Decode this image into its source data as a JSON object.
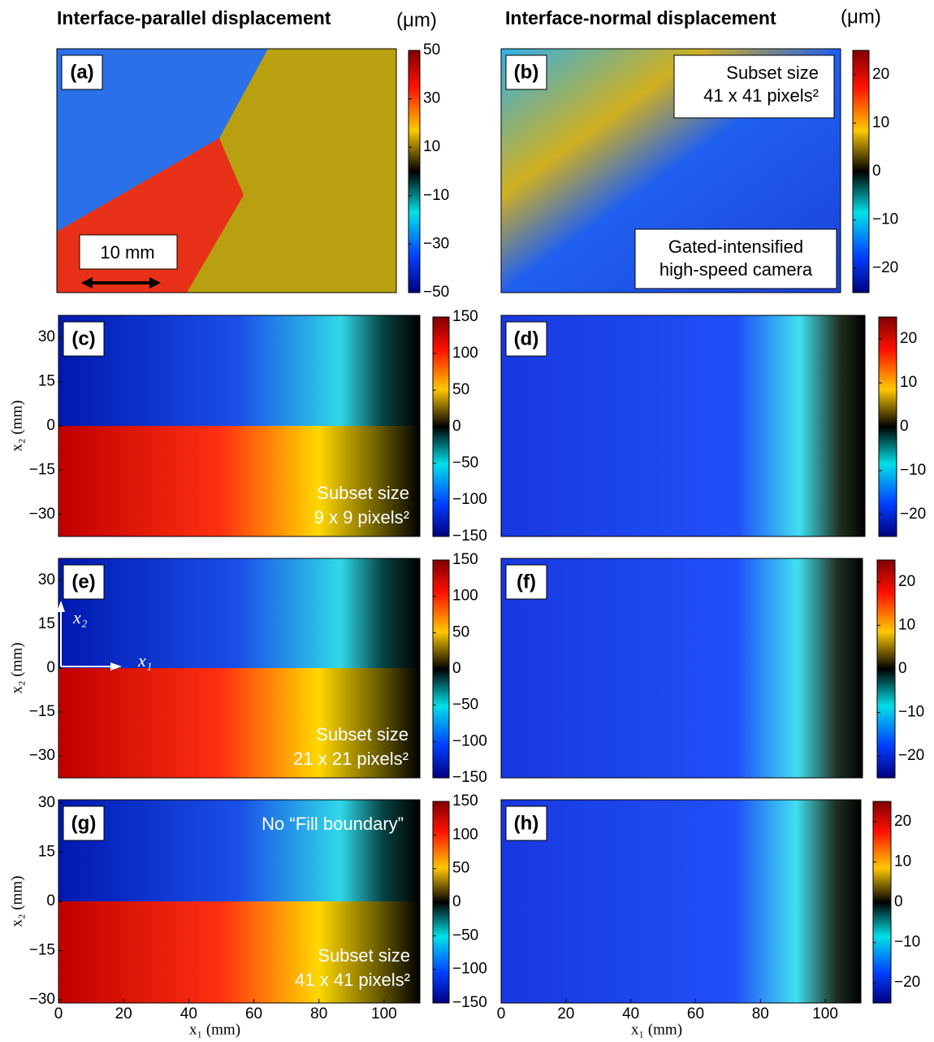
{
  "columns": [
    {
      "title": "Interface-parallel displacement",
      "unit": "(μm)"
    },
    {
      "title": "Interface-normal displacement",
      "unit": "(μm)"
    }
  ],
  "chart_data": [
    {
      "type": "heatmap",
      "label": "(a)",
      "clim": [
        -50,
        50
      ],
      "cticks": [
        {
          "value": -50,
          "label": "−50"
        },
        {
          "value": -30,
          "label": "−30"
        },
        {
          "value": -10,
          "label": "−10"
        },
        10,
        30,
        50
      ],
      "annotations": [
        [
          "10 mm"
        ]
      ]
    },
    {
      "type": "heatmap",
      "label": "(b)",
      "clim": [
        -25,
        25
      ],
      "cticks": [
        {
          "value": -20,
          "label": "−20"
        },
        {
          "value": -10,
          "label": "−10"
        },
        0,
        10,
        20
      ],
      "annotations": [
        [
          "Subset size",
          "41 x 41 pixels²"
        ],
        [
          "Gated-intensified",
          "high-speed camera"
        ]
      ]
    },
    {
      "type": "heatmap",
      "label": "(c)",
      "clim": [
        -150,
        150
      ],
      "cticks": [
        {
          "value": -150,
          "label": "−150"
        },
        {
          "value": -100,
          "label": "−100"
        },
        {
          "value": -50,
          "label": "−50"
        },
        0,
        50,
        100,
        150
      ],
      "ylim": [
        -37.5,
        37.5
      ],
      "yticks": [
        {
          "value": -30,
          "label": "−30"
        },
        {
          "value": -15,
          "label": "−15"
        },
        0,
        15,
        30
      ],
      "ylabel": "x₂ (mm)",
      "annotations": [
        [
          "Subset size",
          "9 x 9 pixels²"
        ]
      ]
    },
    {
      "type": "heatmap",
      "label": "(d)",
      "clim": [
        -25,
        25
      ],
      "cticks": [
        {
          "value": -20,
          "label": "−20"
        },
        {
          "value": -10,
          "label": "−10"
        },
        0,
        10,
        20
      ],
      "annotations": []
    },
    {
      "type": "heatmap",
      "label": "(e)",
      "clim": [
        -150,
        150
      ],
      "cticks": [
        {
          "value": -150,
          "label": "−150"
        },
        {
          "value": -100,
          "label": "−100"
        },
        {
          "value": -50,
          "label": "−50"
        },
        0,
        50,
        100,
        150
      ],
      "ylim": [
        -37.5,
        37.5
      ],
      "yticks": [
        {
          "value": -30,
          "label": "−30"
        },
        {
          "value": -15,
          "label": "−15"
        },
        0,
        15,
        30
      ],
      "ylabel": "x₂ (mm)",
      "annotations": [
        [
          "Subset size",
          "21 x 21 pixels²"
        ],
        [
          "x₂"
        ],
        [
          "x₁"
        ]
      ]
    },
    {
      "type": "heatmap",
      "label": "(f)",
      "clim": [
        -25,
        25
      ],
      "cticks": [
        {
          "value": -20,
          "label": "−20"
        },
        {
          "value": -10,
          "label": "−10"
        },
        0,
        10,
        20
      ],
      "annotations": []
    },
    {
      "type": "heatmap",
      "label": "(g)",
      "clim": [
        -150,
        150
      ],
      "cticks": [
        {
          "value": -150,
          "label": "−150"
        },
        {
          "value": -100,
          "label": "−100"
        },
        {
          "value": -50,
          "label": "−50"
        },
        0,
        50,
        100,
        150
      ],
      "ylim": [
        -31,
        31
      ],
      "yticks": [
        {
          "value": -30,
          "label": "−30"
        },
        {
          "value": -15,
          "label": "−15"
        },
        0,
        15,
        30
      ],
      "xlim": [
        0,
        111
      ],
      "xticks": [
        0,
        20,
        40,
        60,
        80,
        100
      ],
      "ylabel": "x₂ (mm)",
      "xlabel": "x₁ (mm)",
      "annotations": [
        [
          "No “Fill boundary”"
        ],
        [
          "Subset size",
          "41 x 41 pixels²"
        ]
      ]
    },
    {
      "type": "heatmap",
      "label": "(h)",
      "clim": [
        -25,
        25
      ],
      "cticks": [
        {
          "value": -20,
          "label": "−20"
        },
        {
          "value": -10,
          "label": "−10"
        },
        0,
        10,
        20
      ],
      "xlim": [
        0,
        111
      ],
      "xticks": [
        0,
        20,
        40,
        60,
        80,
        100
      ],
      "xlabel": "x₁ (mm)",
      "annotations": []
    }
  ]
}
